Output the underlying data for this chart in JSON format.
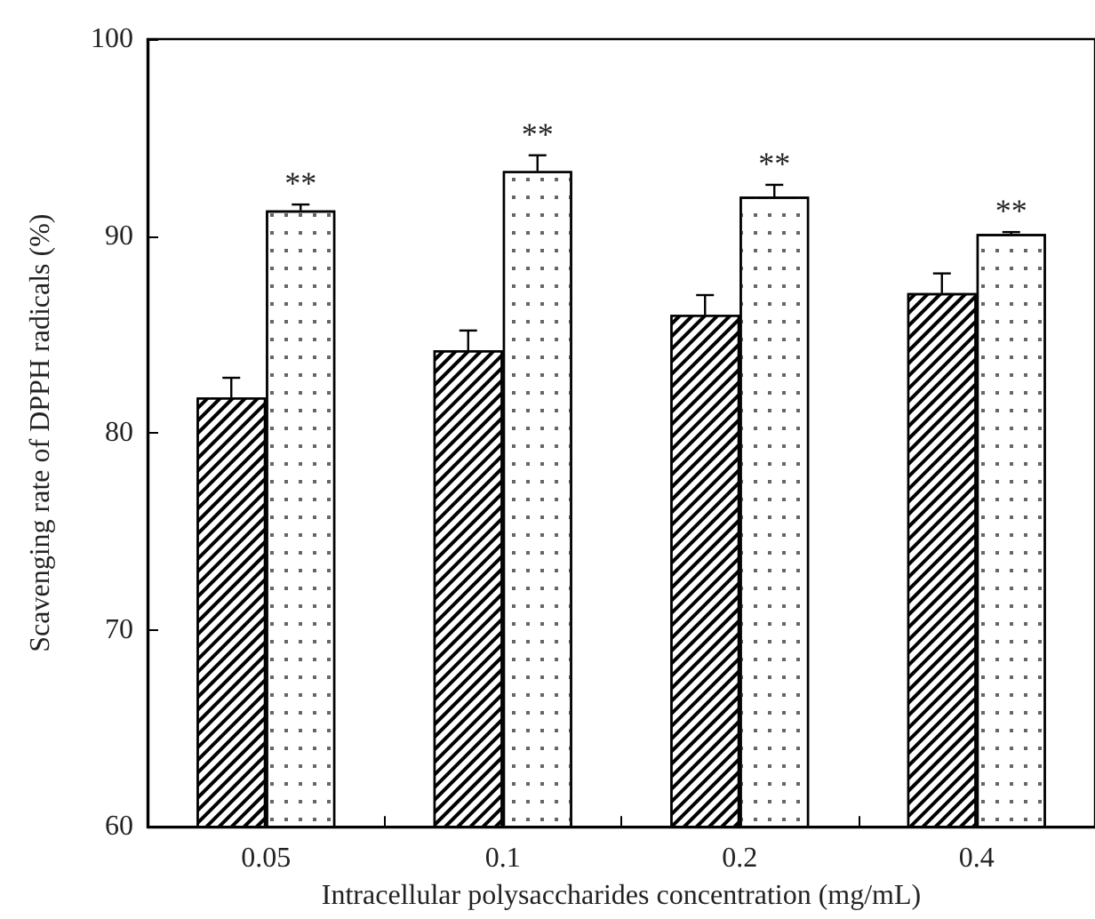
{
  "chart_data": {
    "type": "bar",
    "xlabel": "Intracellular polysaccharides concentration (mg/mL)",
    "ylabel": "Scavenging rate of DPPH radicals (%)",
    "categories": [
      "0.05",
      "0.1",
      "0.2",
      "0.4"
    ],
    "series": [
      {
        "color": "#ffffff",
        "values": [
          81.8,
          84.2,
          86.0,
          87.1
        ],
        "errors": [
          [
            81.8,
            82.8
          ],
          [
            84.2,
            85.2
          ],
          [
            86.0,
            87.0
          ],
          [
            87.1,
            88.1
          ]
        ]
      },
      {
        "color": "#ffffff",
        "values": [
          91.3,
          93.3,
          92.0,
          90.1
        ],
        "errors": [
          [
            91.3,
            91.6
          ],
          [
            93.3,
            94.1
          ],
          [
            92.0,
            92.6
          ],
          [
            90.1,
            90.2
          ]
        ]
      }
    ],
    "ylim": [
      60,
      100
    ],
    "yticks": [
      60,
      70,
      80,
      90,
      100
    ],
    "grid": false,
    "annotations": [
      "**",
      "**",
      "**",
      "**"
    ]
  }
}
